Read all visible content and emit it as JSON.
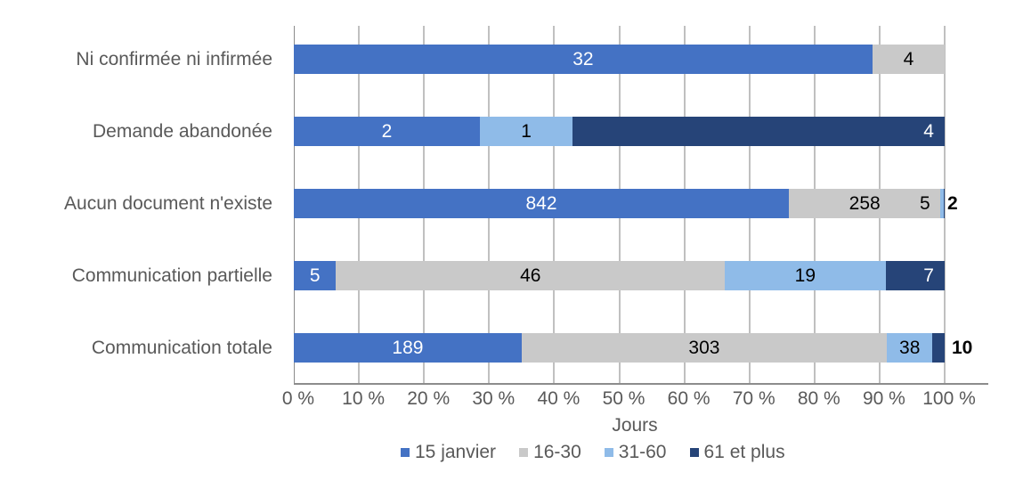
{
  "chart_data": {
    "type": "bar",
    "orientation": "horizontal",
    "stacked": "percent",
    "title": "",
    "xlabel": "Jours",
    "ylabel": "",
    "xlim": [
      0,
      100
    ],
    "x_ticks": [
      "0 %",
      "10 %",
      "20 %",
      "30 %",
      "40 %",
      "50 %",
      "60 %",
      "70 %",
      "80 %",
      "90 %",
      "100 %"
    ],
    "grid": true,
    "legend_position": "bottom",
    "categories": [
      "Ni confirmée ni infirmée",
      "Demande abandonée",
      "Aucun document n'existe",
      "Communication partielle",
      "Communication totale"
    ],
    "series": [
      {
        "name": "15 janvier",
        "color": "#4472c4",
        "values": [
          32,
          2,
          842,
          5,
          189
        ]
      },
      {
        "name": "16-30",
        "color": "#c9c9c9",
        "values": [
          4,
          0,
          258,
          46,
          303
        ]
      },
      {
        "name": "31-60",
        "color": "#8fbbe8",
        "values": [
          0,
          1,
          5,
          19,
          38
        ]
      },
      {
        "name": "61 et plus",
        "color": "#264478",
        "values": [
          0,
          4,
          2,
          7,
          10
        ]
      }
    ]
  },
  "rows": [
    {
      "label": "Ni confirmée ni infirmée",
      "segs": [
        {
          "v": "32",
          "pct": 88.9,
          "color": "#4472c4",
          "text": "#ffffff"
        },
        {
          "v": "4",
          "pct": 11.1,
          "color": "#c9c9c9",
          "text": "#000000"
        }
      ]
    },
    {
      "label": "Demande abandonée",
      "segs": [
        {
          "v": "2",
          "pct": 28.57,
          "color": "#4472c4",
          "text": "#ffffff"
        },
        {
          "v": "1",
          "pct": 14.29,
          "color": "#8fbbe8",
          "text": "#000000"
        },
        {
          "v": "4",
          "pct": 57.14,
          "color": "#264478",
          "text": "#ffffff",
          "align": "right"
        }
      ]
    },
    {
      "label": "Aucun document n'existe",
      "segs": [
        {
          "v": "842",
          "pct": 76.06,
          "color": "#4472c4",
          "text": "#ffffff"
        },
        {
          "v": "258",
          "pct": 23.31,
          "color": "#c9c9c9",
          "text": "#000000"
        },
        {
          "v": "",
          "pct": 0.45,
          "color": "#8fbbe8",
          "text": "#000000"
        },
        {
          "v": "",
          "pct": 0.18,
          "color": "#264478",
          "text": "#ffffff"
        }
      ],
      "extra": [
        {
          "v": "5",
          "x": 1033
        }
      ],
      "outside": "2"
    },
    {
      "label": "Communication partielle",
      "segs": [
        {
          "v": "5",
          "pct": 6.49,
          "color": "#4472c4",
          "text": "#ffffff"
        },
        {
          "v": "46",
          "pct": 59.74,
          "color": "#c9c9c9",
          "text": "#000000"
        },
        {
          "v": "19",
          "pct": 24.68,
          "color": "#8fbbe8",
          "text": "#000000"
        },
        {
          "v": "7",
          "pct": 9.09,
          "color": "#264478",
          "text": "#ffffff",
          "align": "right"
        }
      ]
    },
    {
      "label": "Communication totale",
      "segs": [
        {
          "v": "189",
          "pct": 35.0,
          "color": "#4472c4",
          "text": "#ffffff"
        },
        {
          "v": "303",
          "pct": 56.11,
          "color": "#c9c9c9",
          "text": "#000000"
        },
        {
          "v": "38",
          "pct": 7.04,
          "color": "#8fbbe8",
          "text": "#000000"
        },
        {
          "v": "",
          "pct": 1.85,
          "color": "#264478",
          "text": "#ffffff"
        }
      ],
      "outside": "10"
    }
  ],
  "legend": [
    {
      "label": "15 janvier",
      "color": "#4472c4"
    },
    {
      "label": "16-30",
      "color": "#c9c9c9"
    },
    {
      "label": "31-60",
      "color": "#8fbbe8"
    },
    {
      "label": "61 et plus",
      "color": "#264478"
    }
  ]
}
